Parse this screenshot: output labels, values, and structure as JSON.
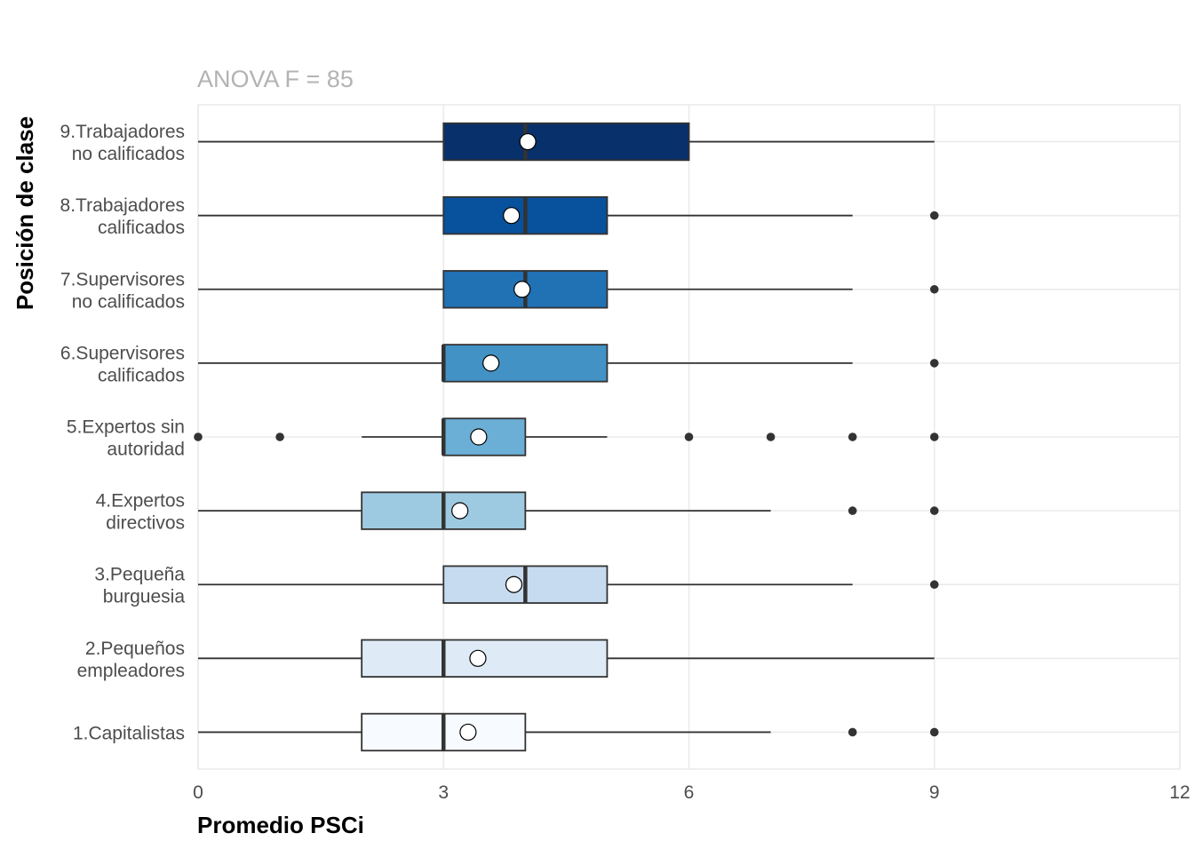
{
  "chart_data": {
    "type": "boxplot",
    "orientation": "horizontal",
    "subtitle": "ANOVA F = 85",
    "xlabel": "Promedio PSCi",
    "ylabel": "Posición de clase",
    "xlim": [
      0,
      12
    ],
    "x_ticks": [
      0,
      3,
      6,
      9,
      12
    ],
    "grid": true,
    "legend": "none",
    "categories": [
      {
        "label": [
          "1.Capitalistas"
        ],
        "q1": 2,
        "median": 3,
        "q3": 4,
        "whisker_low": 0,
        "whisker_high": 7,
        "mean": 3.3,
        "outliers": [
          8,
          9
        ],
        "color": "#f7fbff"
      },
      {
        "label": [
          "2.Pequeños",
          "empleadores"
        ],
        "q1": 2,
        "median": 3,
        "q3": 5,
        "whisker_low": 0,
        "whisker_high": 9,
        "mean": 3.42,
        "outliers": [],
        "color": "#deebf7"
      },
      {
        "label": [
          "3.Pequeña",
          "burguesia"
        ],
        "q1": 3,
        "median": 4,
        "q3": 5,
        "whisker_low": 0,
        "whisker_high": 8,
        "mean": 3.86,
        "outliers": [
          9
        ],
        "color": "#c6dbef"
      },
      {
        "label": [
          "4.Expertos",
          "directivos"
        ],
        "q1": 2,
        "median": 3,
        "q3": 4,
        "whisker_low": 0,
        "whisker_high": 7,
        "mean": 3.2,
        "outliers": [
          8,
          9
        ],
        "color": "#9ecae1"
      },
      {
        "label": [
          "5.Expertos sin",
          "autoridad"
        ],
        "q1": 3,
        "median": 3,
        "q3": 4,
        "whisker_low": 2,
        "whisker_high": 5,
        "mean": 3.43,
        "outliers": [
          0,
          1,
          6,
          7,
          8,
          9
        ],
        "color": "#6baed6"
      },
      {
        "label": [
          "6.Supervisores",
          "calificados"
        ],
        "q1": 3,
        "median": 3,
        "q3": 5,
        "whisker_low": 0,
        "whisker_high": 8,
        "mean": 3.58,
        "outliers": [
          9
        ],
        "color": "#4292c6"
      },
      {
        "label": [
          "7.Supervisores",
          "no calificados"
        ],
        "q1": 3,
        "median": 4,
        "q3": 5,
        "whisker_low": 0,
        "whisker_high": 8,
        "mean": 3.96,
        "outliers": [
          9
        ],
        "color": "#2171b5"
      },
      {
        "label": [
          "8.Trabajadores",
          "calificados"
        ],
        "q1": 3,
        "median": 4,
        "q3": 5,
        "whisker_low": 0,
        "whisker_high": 8,
        "mean": 3.83,
        "outliers": [
          9
        ],
        "color": "#08519c"
      },
      {
        "label": [
          "9.Trabajadores",
          "no calificados"
        ],
        "q1": 3,
        "median": 4,
        "q3": 6,
        "whisker_low": 0,
        "whisker_high": 9,
        "mean": 4.03,
        "outliers": [],
        "color": "#08306b"
      }
    ]
  }
}
